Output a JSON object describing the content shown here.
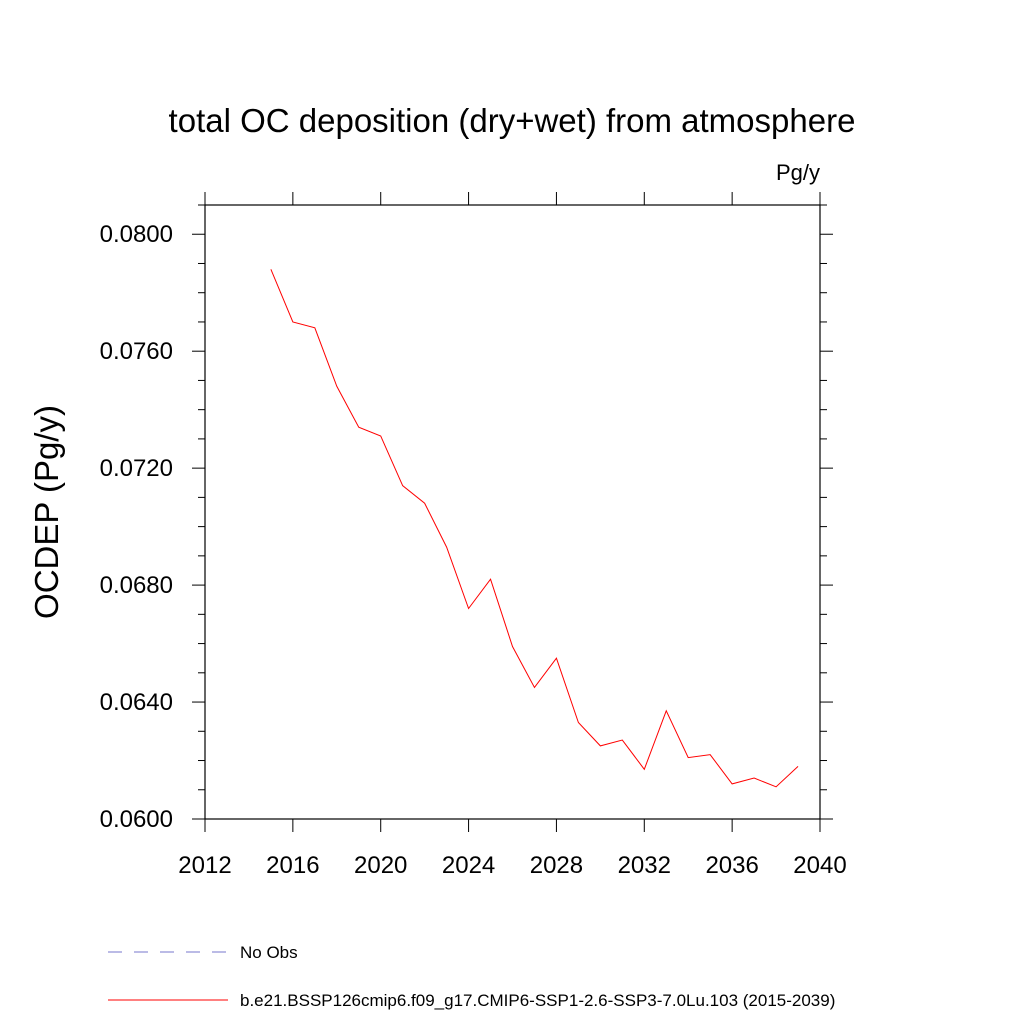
{
  "chart_data": {
    "type": "line",
    "title": "total OC deposition (dry+wet) from atmosphere",
    "units": "Pg/y",
    "xlabel": "",
    "ylabel": "OCDEP  (Pg/y)",
    "xlim": [
      2012,
      2040
    ],
    "ylim": [
      0.06,
      0.081
    ],
    "x_ticks": [
      2012,
      2016,
      2020,
      2024,
      2028,
      2032,
      2036,
      2040
    ],
    "x_tick_labels": [
      "2012",
      "2016",
      "2020",
      "2024",
      "2028",
      "2032",
      "2036",
      "2040"
    ],
    "y_ticks": [
      0.06,
      0.064,
      0.068,
      0.072,
      0.076,
      0.08
    ],
    "y_tick_labels": [
      "0.0600",
      "0.0640",
      "0.0680",
      "0.0720",
      "0.0760",
      "0.0800"
    ],
    "grid": false,
    "series": [
      {
        "name": "b.e21.BSSP126cmip6.f09_g17.CMIP6-SSP1-2.6-SSP3-7.0Lu.103 (2015-2039)",
        "color": "#ff0000",
        "x": [
          2015,
          2016,
          2017,
          2018,
          2019,
          2020,
          2021,
          2022,
          2023,
          2024,
          2025,
          2026,
          2027,
          2028,
          2029,
          2030,
          2031,
          2032,
          2033,
          2034,
          2035,
          2036,
          2037,
          2038,
          2039
        ],
        "values": [
          0.0788,
          0.077,
          0.0768,
          0.0748,
          0.0734,
          0.0731,
          0.0714,
          0.0708,
          0.0693,
          0.0672,
          0.0682,
          0.0659,
          0.0645,
          0.0655,
          0.0633,
          0.0625,
          0.0627,
          0.0617,
          0.0637,
          0.0621,
          0.0622,
          0.0612,
          0.0614,
          0.0611,
          0.0618
        ]
      }
    ],
    "legend": [
      {
        "label": "No Obs",
        "color": "#7777cc",
        "style": "dashed"
      },
      {
        "label": "b.e21.BSSP126cmip6.f09_g17.CMIP6-SSP1-2.6-SSP3-7.0Lu.103 (2015-2039)",
        "color": "#ff0000",
        "style": "solid"
      }
    ]
  }
}
